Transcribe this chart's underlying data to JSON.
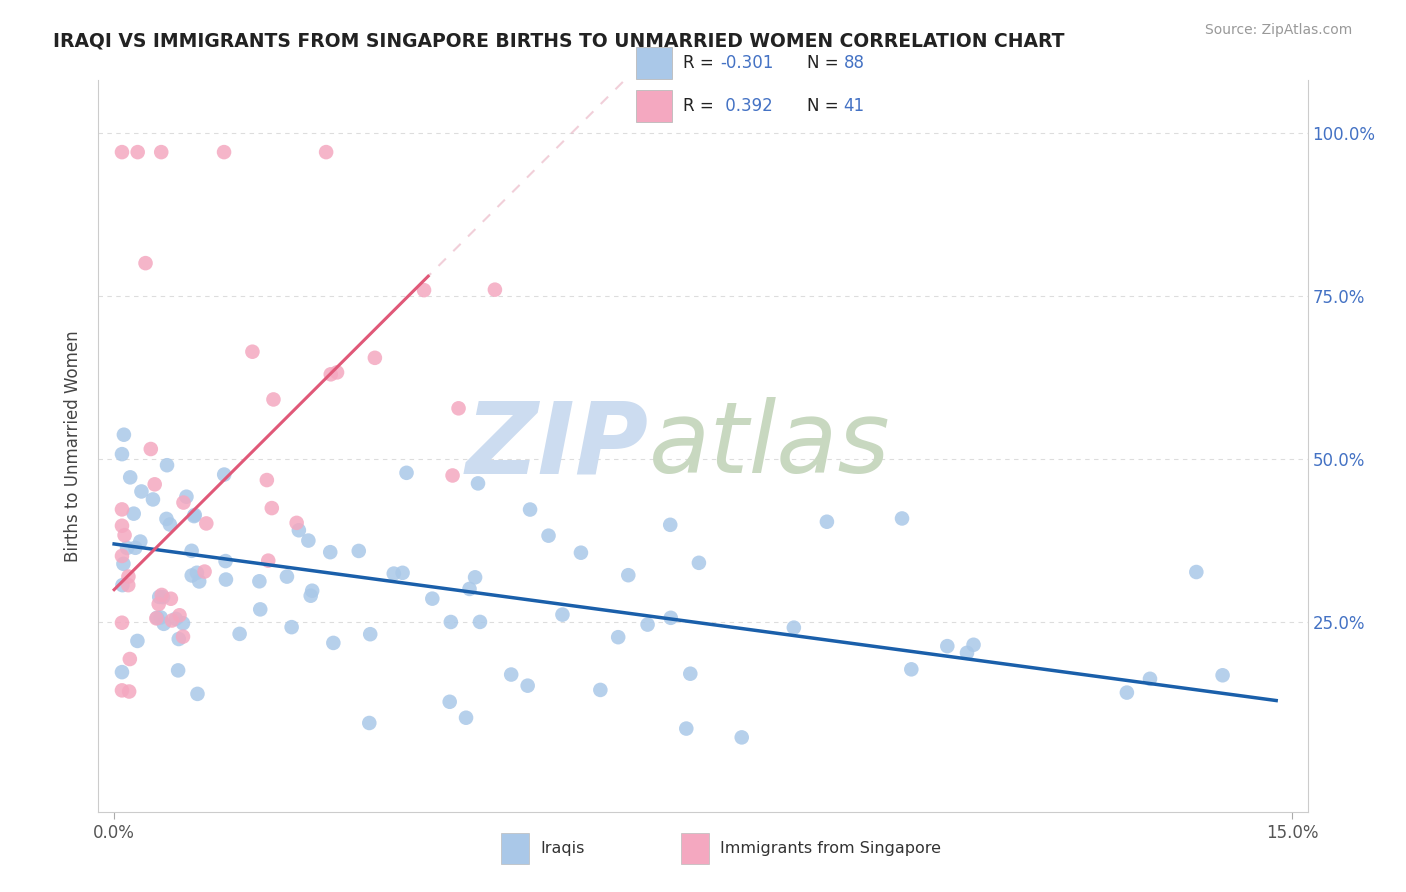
{
  "title": "IRAQI VS IMMIGRANTS FROM SINGAPORE BIRTHS TO UNMARRIED WOMEN CORRELATION CHART",
  "source": "Source: ZipAtlas.com",
  "ylabel": "Births to Unmarried Women",
  "color_iraqis": "#aac8e8",
  "color_singapore": "#f4a8c0",
  "color_iraqis_line": "#1a5faa",
  "color_singapore_line": "#e05878",
  "color_singapore_dash": "#e8b0c0",
  "watermark_zip_color": "#ccdcf0",
  "watermark_atlas_color": "#c8d8c0",
  "background": "#ffffff",
  "legend_text_color": "#4472c4",
  "legend_label_color": "#222222",
  "right_axis_color": "#4472c4",
  "grid_color": "#dddddd",
  "title_color": "#222222",
  "source_color": "#999999",
  "xlim_min": -0.002,
  "xlim_max": 0.152,
  "ylim_min": -0.04,
  "ylim_max": 1.08
}
